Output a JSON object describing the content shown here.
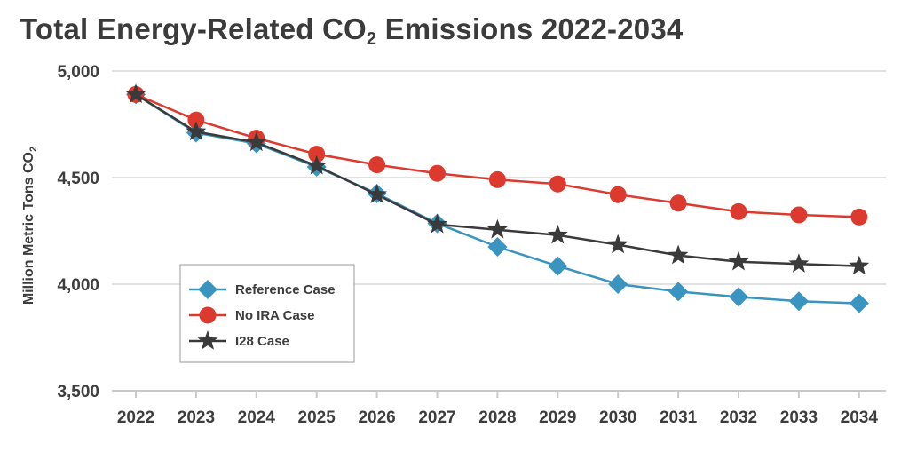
{
  "chart_data": {
    "type": "line",
    "title": "Total Energy-Related CO",
    "title_sub": "2",
    "title_suffix": " Emissions 2022-2034",
    "ylabel": "Million Metric Tons CO",
    "ylabel_sub": "2",
    "xlabel": "",
    "x": [
      "2022",
      "2023",
      "2024",
      "2025",
      "2026",
      "2027",
      "2028",
      "2029",
      "2030",
      "2031",
      "2032",
      "2033",
      "2034"
    ],
    "y_ticks": [
      5000,
      4500,
      4000,
      3500
    ],
    "y_tick_labels": [
      "5,000",
      "4,500",
      "4,000",
      "3,500"
    ],
    "ylim": [
      3500,
      5000
    ],
    "grid": true,
    "legend_position": "bottom-left",
    "series": [
      {
        "name": "Reference Case",
        "color": "#3a94c0",
        "marker": "diamond",
        "values": [
          4890,
          4710,
          4660,
          4550,
          4425,
          4285,
          4175,
          4085,
          4000,
          3965,
          3940,
          3920,
          3910
        ]
      },
      {
        "name": "No IRA Case",
        "color": "#dc3a2e",
        "marker": "circle",
        "values": [
          4890,
          4770,
          4685,
          4610,
          4560,
          4520,
          4490,
          4470,
          4420,
          4380,
          4340,
          4325,
          4315
        ]
      },
      {
        "name": "I28 Case",
        "color": "#3a3a3a",
        "marker": "star",
        "values": [
          4890,
          4715,
          4665,
          4555,
          4420,
          4280,
          4255,
          4230,
          4185,
          4135,
          4105,
          4095,
          4085
        ]
      }
    ]
  }
}
